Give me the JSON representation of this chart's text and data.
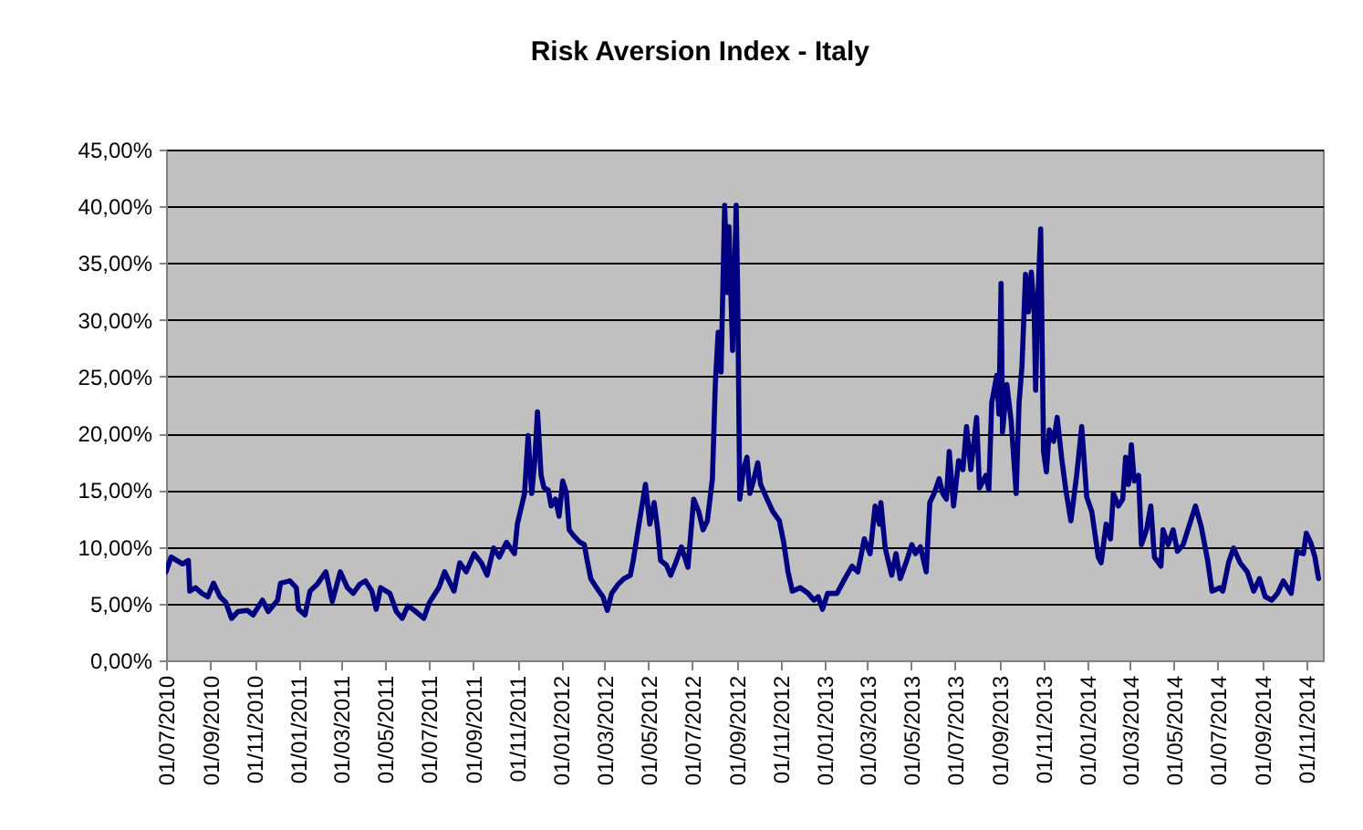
{
  "chart_data": {
    "type": "line",
    "title": "Risk Aversion Index - Italy",
    "color": "#000080",
    "line_style": "solid",
    "grid": "y",
    "x": [
      "2010-07-01",
      "2010-07-08",
      "2010-07-24",
      "2010-08-01",
      "2010-08-03",
      "2010-08-11",
      "2010-08-20",
      "2010-08-28",
      "2010-09-05",
      "2010-09-14",
      "2010-09-22",
      "2010-09-30",
      "2010-10-09",
      "2010-10-22",
      "2010-10-30",
      "2010-11-12",
      "2010-11-20",
      "2010-12-03",
      "2010-12-07",
      "2010-12-20",
      "2010-12-29",
      "2011-01-01",
      "2011-01-10",
      "2011-01-17",
      "2011-01-27",
      "2011-02-08",
      "2011-02-17",
      "2011-02-28",
      "2011-03-10",
      "2011-03-18",
      "2011-03-27",
      "2011-04-04",
      "2011-04-13",
      "2011-04-19",
      "2011-04-25",
      "2011-05-08",
      "2011-05-17",
      "2011-05-25",
      "2011-06-02",
      "2011-06-11",
      "2011-06-24",
      "2011-07-02",
      "2011-07-15",
      "2011-07-23",
      "2011-08-05",
      "2011-08-13",
      "2011-08-22",
      "2011-09-02",
      "2011-09-12",
      "2011-09-20",
      "2011-09-29",
      "2011-10-07",
      "2011-10-17",
      "2011-10-28",
      "2011-11-01",
      "2011-11-11",
      "2011-11-16",
      "2011-11-21",
      "2011-11-25",
      "2011-11-29",
      "2011-12-04",
      "2011-12-08",
      "2011-12-14",
      "2011-12-18",
      "2011-12-24",
      "2011-12-29",
      "2012-01-03",
      "2012-01-08",
      "2012-01-12",
      "2012-01-18",
      "2012-01-27",
      "2012-02-02",
      "2012-02-06",
      "2012-02-11",
      "2012-02-19",
      "2012-02-28",
      "2012-03-05",
      "2012-03-11",
      "2012-03-20",
      "2012-03-28",
      "2012-04-06",
      "2012-04-10",
      "2012-04-18",
      "2012-04-27",
      "2012-05-03",
      "2012-05-09",
      "2012-05-14",
      "2012-05-18",
      "2012-05-26",
      "2012-06-01",
      "2012-06-08",
      "2012-06-16",
      "2012-06-25",
      "2012-07-03",
      "2012-07-10",
      "2012-07-16",
      "2012-07-22",
      "2012-07-29",
      "2012-08-02",
      "2012-08-06",
      "2012-08-10",
      "2012-08-15",
      "2012-08-19",
      "2012-08-21",
      "2012-08-26",
      "2012-08-31",
      "2012-09-02",
      "2012-09-05",
      "2012-09-10",
      "2012-09-15",
      "2012-09-19",
      "2012-09-24",
      "2012-09-30",
      "2012-10-04",
      "2012-10-13",
      "2012-10-21",
      "2012-10-30",
      "2012-11-05",
      "2012-11-11",
      "2012-11-17",
      "2012-11-28",
      "2012-12-09",
      "2012-12-17",
      "2012-12-23",
      "2012-12-29",
      "2013-01-05",
      "2013-01-18",
      "2013-01-29",
      "2013-02-08",
      "2013-02-16",
      "2013-02-25",
      "2013-03-05",
      "2013-03-12",
      "2013-03-18",
      "2013-03-20",
      "2013-03-26",
      "2013-04-04",
      "2013-04-10",
      "2013-04-16",
      "2013-04-25",
      "2013-05-02",
      "2013-05-07",
      "2013-05-14",
      "2013-05-22",
      "2013-05-27",
      "2013-06-02",
      "2013-06-09",
      "2013-06-14",
      "2013-06-19",
      "2013-06-23",
      "2013-06-29",
      "2013-07-06",
      "2013-07-12",
      "2013-07-17",
      "2013-07-23",
      "2013-07-31",
      "2013-08-04",
      "2013-08-13",
      "2013-08-17",
      "2013-08-21",
      "2013-08-28",
      "2013-08-31",
      "2013-09-03",
      "2013-09-05",
      "2013-09-11",
      "2013-09-17",
      "2013-09-24",
      "2013-09-28",
      "2013-10-02",
      "2013-10-07",
      "2013-10-11",
      "2013-10-15",
      "2013-10-19",
      "2013-10-21",
      "2013-10-24",
      "2013-10-28",
      "2013-11-01",
      "2013-11-05",
      "2013-11-09",
      "2013-11-15",
      "2013-11-20",
      "2013-11-26",
      "2013-12-02",
      "2013-12-09",
      "2013-12-17",
      "2013-12-24",
      "2013-12-31",
      "2014-01-07",
      "2014-01-16",
      "2014-01-20",
      "2014-01-27",
      "2014-02-02",
      "2014-02-06",
      "2014-02-13",
      "2014-02-19",
      "2014-02-23",
      "2014-02-27",
      "2014-03-03",
      "2014-03-07",
      "2014-03-13",
      "2014-03-17",
      "2014-03-24",
      "2014-03-30",
      "2014-04-04",
      "2014-04-13",
      "2014-04-16",
      "2014-04-23",
      "2014-04-30",
      "2014-05-06",
      "2014-05-14",
      "2014-05-23",
      "2014-05-31",
      "2014-06-08",
      "2014-06-17",
      "2014-06-23",
      "2014-07-04",
      "2014-07-08",
      "2014-07-16",
      "2014-07-23",
      "2014-08-01",
      "2014-08-11",
      "2014-08-20",
      "2014-08-28",
      "2014-09-05",
      "2014-09-14",
      "2014-09-22",
      "2014-09-30",
      "2014-10-11",
      "2014-10-19",
      "2014-10-28",
      "2014-11-01",
      "2014-11-07",
      "2014-11-13",
      "2014-11-18"
    ],
    "values": [
      7.8,
      9.1,
      8.5,
      8.8,
      6.1,
      6.4,
      5.9,
      5.6,
      6.8,
      5.6,
      5.1,
      3.7,
      4.3,
      4.4,
      4.0,
      5.3,
      4.3,
      5.3,
      6.8,
      7.0,
      6.4,
      4.5,
      4.0,
      6.1,
      6.7,
      7.8,
      5.2,
      7.8,
      6.4,
      5.9,
      6.7,
      7.0,
      6.1,
      4.5,
      6.4,
      5.9,
      4.3,
      3.7,
      4.8,
      4.4,
      3.7,
      5.1,
      6.4,
      7.8,
      6.1,
      8.6,
      7.8,
      9.4,
      8.6,
      7.5,
      9.9,
      9.1,
      10.4,
      9.4,
      12.0,
      14.7,
      19.8,
      14.7,
      17.4,
      21.9,
      16.3,
      15.2,
      15.0,
      13.6,
      14.2,
      12.7,
      15.8,
      14.8,
      11.5,
      11.0,
      10.4,
      10.2,
      8.8,
      7.2,
      6.4,
      5.6,
      4.4,
      5.9,
      6.7,
      7.2,
      7.5,
      8.8,
      12.0,
      15.5,
      12.0,
      13.9,
      11.5,
      8.8,
      8.4,
      7.5,
      8.6,
      10.0,
      8.2,
      14.2,
      13.1,
      11.5,
      12.3,
      16.0,
      24.3,
      28.9,
      25.4,
      40.1,
      32.4,
      38.2,
      27.3,
      40.1,
      32.9,
      14.2,
      16.8,
      17.9,
      14.7,
      15.8,
      17.4,
      15.5,
      14.2,
      13.1,
      12.3,
      10.4,
      7.8,
      6.1,
      6.4,
      5.9,
      5.3,
      5.6,
      4.5,
      5.9,
      5.9,
      7.2,
      8.3,
      7.8,
      10.7,
      9.4,
      13.6,
      12.0,
      13.9,
      9.9,
      7.5,
      9.4,
      7.2,
      8.8,
      10.2,
      9.4,
      10.0,
      7.8,
      13.9,
      14.7,
      16.0,
      14.7,
      14.2,
      18.4,
      13.6,
      17.6,
      16.8,
      20.6,
      16.8,
      21.4,
      15.2,
      16.3,
      15.0,
      22.7,
      25.1,
      21.7,
      33.2,
      20.1,
      24.3,
      21.1,
      14.7,
      22.7,
      25.9,
      34.0,
      30.7,
      34.2,
      30.7,
      23.8,
      31.8,
      38.0,
      18.4,
      16.6,
      20.3,
      19.3,
      21.4,
      17.9,
      15.0,
      12.3,
      16.3,
      20.6,
      14.4,
      13.1,
      9.1,
      8.6,
      12.0,
      10.7,
      14.7,
      13.6,
      14.2,
      17.9,
      15.5,
      19.0,
      15.8,
      16.3,
      10.2,
      11.5,
      13.6,
      9.1,
      8.3,
      11.5,
      10.2,
      11.5,
      9.6,
      10.2,
      12.0,
      13.6,
      11.8,
      8.8,
      6.1,
      6.4,
      6.1,
      8.6,
      9.9,
      8.6,
      7.8,
      6.1,
      7.2,
      5.6,
      5.3,
      5.9,
      7.0,
      5.9,
      9.6,
      9.4,
      11.2,
      10.4,
      9.1,
      7.2
    ],
    "xlim": [
      "2010-07-01",
      "2014-11-24"
    ],
    "xticks": [
      {
        "value": "2010-07-01",
        "label": "01/07/2010"
      },
      {
        "value": "2010-09-01",
        "label": "01/09/2010"
      },
      {
        "value": "2010-11-01",
        "label": "01/11/2010"
      },
      {
        "value": "2011-01-01",
        "label": "01/01/2011"
      },
      {
        "value": "2011-03-01",
        "label": "01/03/2011"
      },
      {
        "value": "2011-05-01",
        "label": "01/05/2011"
      },
      {
        "value": "2011-07-01",
        "label": "01/07/2011"
      },
      {
        "value": "2011-09-01",
        "label": "01/09/2011"
      },
      {
        "value": "2011-11-01",
        "label": "01/11/2011"
      },
      {
        "value": "2012-01-01",
        "label": "01/01/2012"
      },
      {
        "value": "2012-03-01",
        "label": "01/03/2012"
      },
      {
        "value": "2012-05-01",
        "label": "01/05/2012"
      },
      {
        "value": "2012-07-01",
        "label": "01/07/2012"
      },
      {
        "value": "2012-09-01",
        "label": "01/09/2012"
      },
      {
        "value": "2012-11-01",
        "label": "01/11/2012"
      },
      {
        "value": "2013-01-01",
        "label": "01/01/2013"
      },
      {
        "value": "2013-03-01",
        "label": "01/03/2013"
      },
      {
        "value": "2013-05-01",
        "label": "01/05/2013"
      },
      {
        "value": "2013-07-01",
        "label": "01/07/2013"
      },
      {
        "value": "2013-09-01",
        "label": "01/09/2013"
      },
      {
        "value": "2013-11-01",
        "label": "01/11/2013"
      },
      {
        "value": "2014-01-01",
        "label": "01/01/2014"
      },
      {
        "value": "2014-03-01",
        "label": "01/03/2014"
      },
      {
        "value": "2014-05-01",
        "label": "01/05/2014"
      },
      {
        "value": "2014-07-01",
        "label": "01/07/2014"
      },
      {
        "value": "2014-09-01",
        "label": "01/09/2014"
      },
      {
        "value": "2014-11-01",
        "label": "01/11/2014"
      }
    ],
    "ylim": [
      0,
      45
    ],
    "yticks": [
      {
        "value": 0,
        "label": "0,00%"
      },
      {
        "value": 5,
        "label": "5,00%"
      },
      {
        "value": 10,
        "label": "10,00%"
      },
      {
        "value": 15,
        "label": "15,00%"
      },
      {
        "value": 20,
        "label": "20,00%"
      },
      {
        "value": 25,
        "label": "25,00%"
      },
      {
        "value": 30,
        "label": "30,00%"
      },
      {
        "value": 35,
        "label": "35,00%"
      },
      {
        "value": 40,
        "label": "40,00%"
      },
      {
        "value": 45,
        "label": "45,00%"
      }
    ]
  }
}
